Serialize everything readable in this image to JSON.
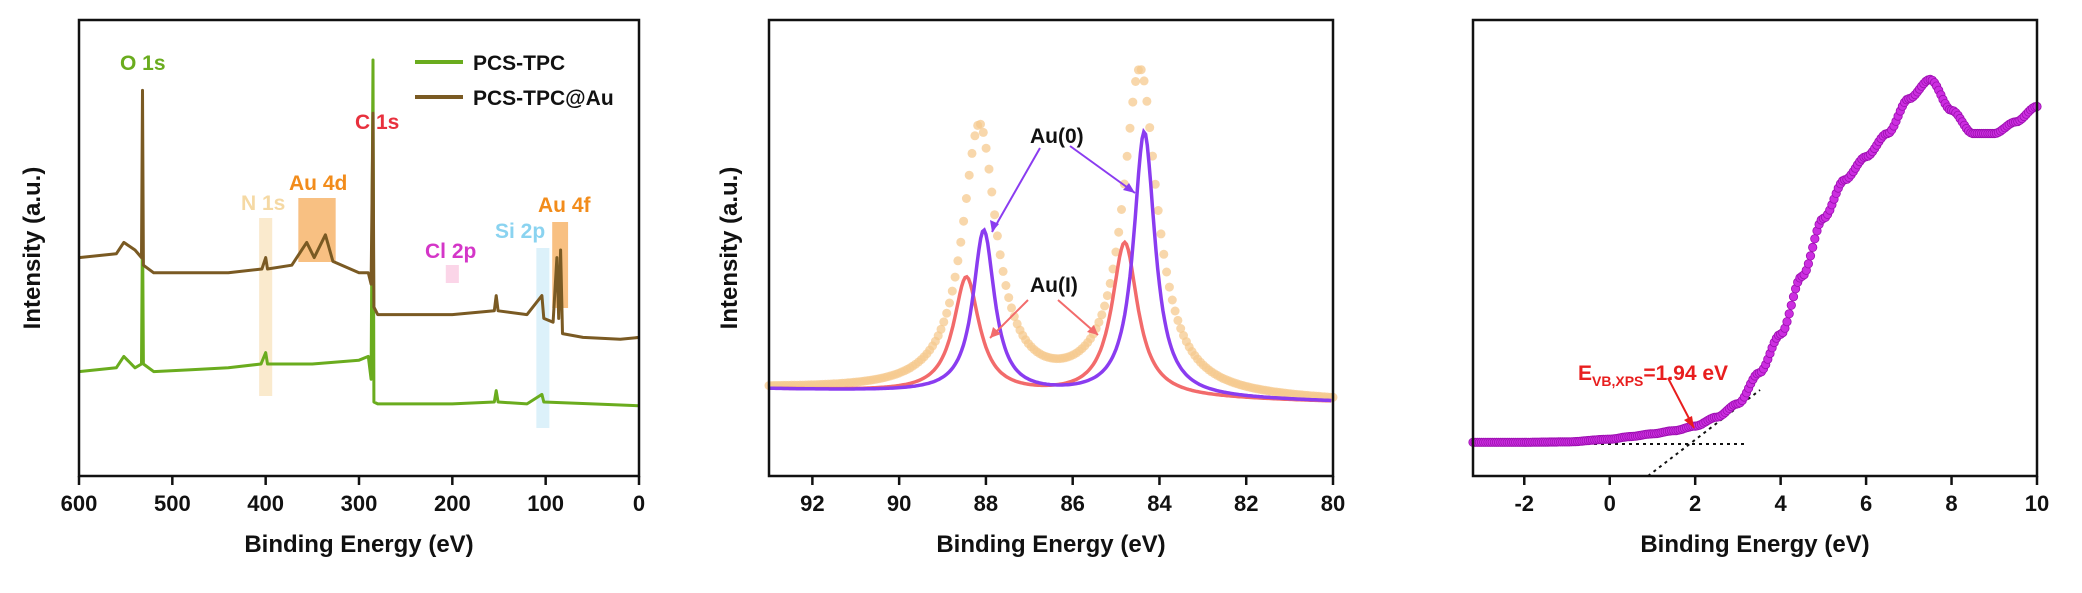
{
  "chart_data": [
    {
      "type": "line",
      "panel": "survey",
      "xlabel": "Binding Energy (eV)",
      "ylabel": "Intensity (a.u.)",
      "xlim": [
        600,
        0
      ],
      "x_reversed": true,
      "xticks": [
        600,
        500,
        400,
        300,
        200,
        100,
        0
      ],
      "legend_position": "top-right",
      "legend": [
        "PCS-TPC",
        "PCS-TPC@Au"
      ],
      "series": [
        {
          "name": "PCS-TPC",
          "color": "#6aac1e",
          "points": [
            [
              600,
              0.18
            ],
            [
              560,
              0.19
            ],
            [
              552,
              0.22
            ],
            [
              540,
              0.19
            ],
            [
              533,
              0.2
            ],
            [
              532,
              0.58
            ],
            [
              531,
              0.2
            ],
            [
              520,
              0.18
            ],
            [
              480,
              0.185
            ],
            [
              440,
              0.19
            ],
            [
              405,
              0.2
            ],
            [
              400,
              0.23
            ],
            [
              398,
              0.2
            ],
            [
              350,
              0.2
            ],
            [
              300,
              0.21
            ],
            [
              290,
              0.22
            ],
            [
              287,
              0.16
            ],
            [
              285,
              1.0
            ],
            [
              284,
              0.1
            ],
            [
              280,
              0.095
            ],
            [
              200,
              0.095
            ],
            [
              155,
              0.1
            ],
            [
              153,
              0.13
            ],
            [
              151,
              0.1
            ],
            [
              120,
              0.095
            ],
            [
              104,
              0.12
            ],
            [
              102,
              0.1
            ],
            [
              50,
              0.095
            ],
            [
              0,
              0.09
            ]
          ]
        },
        {
          "name": "PCS-TPC@Au",
          "color": "#7a5a23",
          "points": [
            [
              600,
              0.48
            ],
            [
              560,
              0.49
            ],
            [
              552,
              0.52
            ],
            [
              540,
              0.5
            ],
            [
              533,
              0.48
            ],
            [
              532,
              0.92
            ],
            [
              531,
              0.46
            ],
            [
              520,
              0.44
            ],
            [
              480,
              0.44
            ],
            [
              440,
              0.44
            ],
            [
              404,
              0.45
            ],
            [
              400,
              0.48
            ],
            [
              398,
              0.45
            ],
            [
              372,
              0.46
            ],
            [
              356,
              0.52
            ],
            [
              348,
              0.48
            ],
            [
              336,
              0.54
            ],
            [
              328,
              0.47
            ],
            [
              300,
              0.44
            ],
            [
              290,
              0.44
            ],
            [
              287,
              0.41
            ],
            [
              285,
              0.86
            ],
            [
              284,
              0.35
            ],
            [
              280,
              0.33
            ],
            [
              220,
              0.33
            ],
            [
              200,
              0.33
            ],
            [
              155,
              0.34
            ],
            [
              153,
              0.38
            ],
            [
              151,
              0.34
            ],
            [
              120,
              0.33
            ],
            [
              104,
              0.38
            ],
            [
              102,
              0.32
            ],
            [
              92,
              0.31
            ],
            [
              88,
              0.48
            ],
            [
              86,
              0.32
            ],
            [
              84,
              0.5
            ],
            [
              82,
              0.28
            ],
            [
              60,
              0.27
            ],
            [
              20,
              0.265
            ],
            [
              0,
              0.27
            ]
          ]
        }
      ],
      "annotations": [
        {
          "text": "O 1s",
          "x": 532,
          "color": "#6aac1e"
        },
        {
          "text": "C 1s",
          "x": 285,
          "color": "#e8313e"
        },
        {
          "text": "N 1s",
          "x": 400,
          "color": "#f5d9a4"
        },
        {
          "text": "Au 4d",
          "x": 345,
          "color": "#f28c1b"
        },
        {
          "text": "Cl 2p",
          "x": 200,
          "color": "#d436c8"
        },
        {
          "text": "Si 2p",
          "x": 103,
          "color": "#8ad3f0"
        },
        {
          "text": "Au 4f",
          "x": 85,
          "color": "#f28c1b"
        }
      ],
      "highlight_bands": [
        {
          "x1": 407,
          "x2": 393,
          "color": "#f5d9a4"
        },
        {
          "x1": 365,
          "x2": 325,
          "color": "#f28c1b"
        },
        {
          "x1": 207,
          "x2": 193,
          "color": "#f7b3d6"
        },
        {
          "x1": 110,
          "x2": 96,
          "color": "#bfe6f6"
        },
        {
          "x1": 93,
          "x2": 76,
          "color": "#f28c1b"
        }
      ]
    },
    {
      "type": "line",
      "panel": "Au 4f",
      "xlabel": "Binding Energy (eV)",
      "ylabel": "Intensity (a.u.)",
      "xlim": [
        93,
        80
      ],
      "x_reversed": true,
      "xticks": [
        92,
        90,
        88,
        86,
        84,
        82,
        80
      ],
      "series": [
        {
          "role": "raw data",
          "color": "#f5c98f",
          "peaks": [
            {
              "x": 88.15,
              "height": 0.62,
              "width": 0.48
            },
            {
              "x": 84.45,
              "height": 0.76,
              "width": 0.48
            }
          ],
          "baseline": [
            0.03,
            0.0
          ]
        },
        {
          "role": "Au(0) fit",
          "color": "#8a3cf0",
          "peaks": [
            {
              "x": 88.05,
              "height": 0.38,
              "width": 0.3
            },
            {
              "x": 84.35,
              "height": 0.62,
              "width": 0.3
            }
          ],
          "baseline": [
            0.03,
            0.0
          ]
        },
        {
          "role": "Au(I) fit",
          "color": "#f26b6b",
          "peaks": [
            {
              "x": 88.45,
              "height": 0.27,
              "width": 0.36
            },
            {
              "x": 84.8,
              "height": 0.36,
              "width": 0.36
            }
          ],
          "baseline": [
            0.03,
            0.0
          ]
        }
      ],
      "annotations": [
        {
          "text": "Au(0)",
          "color": "#111111"
        },
        {
          "text": "Au(I)",
          "color": "#111111"
        }
      ]
    },
    {
      "type": "scatter",
      "panel": "valence band",
      "xlabel": "Binding Energy (eV)",
      "xlim": [
        -3.2,
        10
      ],
      "xticks": [
        -2,
        0,
        2,
        4,
        6,
        8,
        10
      ],
      "color": "#cc2ee0",
      "points": [
        [
          -3.2,
          0.02
        ],
        [
          -2,
          0.02
        ],
        [
          -1,
          0.021
        ],
        [
          0,
          0.028
        ],
        [
          0.5,
          0.035
        ],
        [
          1,
          0.042
        ],
        [
          1.5,
          0.05
        ],
        [
          2,
          0.062
        ],
        [
          2.5,
          0.085
        ],
        [
          3,
          0.12
        ],
        [
          3.5,
          0.2
        ],
        [
          4,
          0.3
        ],
        [
          4.5,
          0.45
        ],
        [
          5,
          0.6
        ],
        [
          5.5,
          0.7
        ],
        [
          6,
          0.76
        ],
        [
          6.5,
          0.82
        ],
        [
          7,
          0.91
        ],
        [
          7.5,
          0.96
        ],
        [
          8,
          0.88
        ],
        [
          8.5,
          0.82
        ],
        [
          9,
          0.82
        ],
        [
          9.5,
          0.85
        ],
        [
          10,
          0.89
        ]
      ],
      "annotation": {
        "text": "E",
        "subscript": "VB,XPS",
        "suffix": "=1.94 eV",
        "value": 1.94,
        "color": "#e81e1e"
      }
    }
  ]
}
